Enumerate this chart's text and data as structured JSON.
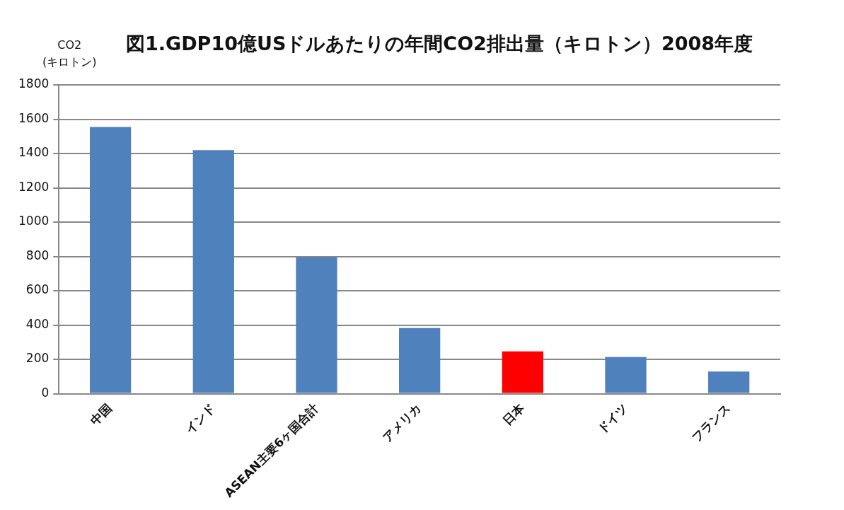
{
  "chart_data": {
    "type": "bar",
    "title": "図1.GDP10億USドルあたりの年間CO2排出量（キロトン）2008年度",
    "ylabel": "CO2\n(キロトン)",
    "categories": [
      "中国",
      "インド",
      "ASEAN主要6ヶ国合計",
      "アメリカ",
      "日本",
      "ドイツ",
      "フランス"
    ],
    "values": [
      1555,
      1420,
      795,
      383,
      247,
      214,
      129
    ],
    "colors": [
      "#4f81bd",
      "#4f81bd",
      "#4f81bd",
      "#4f81bd",
      "#ff0000",
      "#4f81bd",
      "#4f81bd"
    ],
    "ylim": [
      0,
      1800
    ],
    "yticks": [
      0,
      200,
      400,
      600,
      800,
      1000,
      1200,
      1400,
      1600,
      1800
    ],
    "grid": "y",
    "legend": false
  }
}
